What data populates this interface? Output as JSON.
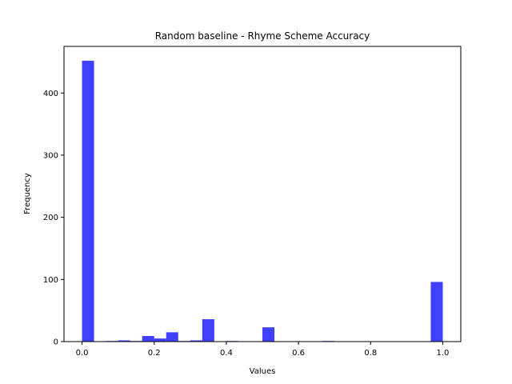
{
  "chart_data": {
    "type": "bar",
    "title": "Random baseline - Rhyme Scheme Accuracy",
    "xlabel": "Values",
    "ylabel": "Frequency",
    "xlim": [
      -0.05,
      1.05
    ],
    "ylim": [
      0,
      475
    ],
    "bar_color": "#0000ff",
    "bar_opacity": 0.75,
    "bin_width": 0.0333,
    "x_ticks": [
      0.0,
      0.2,
      0.4,
      0.6,
      0.8,
      1.0
    ],
    "x_tick_labels": [
      "0.0",
      "0.2",
      "0.4",
      "0.6",
      "0.8",
      "1.0"
    ],
    "y_ticks": [
      0,
      100,
      200,
      300,
      400
    ],
    "y_tick_labels": [
      "0",
      "100",
      "200",
      "300",
      "400"
    ],
    "bins": [
      {
        "x": 0.0,
        "value": 452
      },
      {
        "x": 0.0333,
        "value": 0
      },
      {
        "x": 0.0667,
        "value": 1
      },
      {
        "x": 0.1,
        "value": 2
      },
      {
        "x": 0.1333,
        "value": 1
      },
      {
        "x": 0.1667,
        "value": 9
      },
      {
        "x": 0.2,
        "value": 5
      },
      {
        "x": 0.2333,
        "value": 15
      },
      {
        "x": 0.2667,
        "value": 1
      },
      {
        "x": 0.3,
        "value": 2
      },
      {
        "x": 0.3333,
        "value": 36
      },
      {
        "x": 0.3667,
        "value": 0
      },
      {
        "x": 0.4,
        "value": 1
      },
      {
        "x": 0.4333,
        "value": 0
      },
      {
        "x": 0.4667,
        "value": 0
      },
      {
        "x": 0.5,
        "value": 23
      },
      {
        "x": 0.5333,
        "value": 0
      },
      {
        "x": 0.5667,
        "value": 0
      },
      {
        "x": 0.6,
        "value": 0
      },
      {
        "x": 0.6333,
        "value": 0
      },
      {
        "x": 0.6667,
        "value": 1
      },
      {
        "x": 0.7,
        "value": 0
      },
      {
        "x": 0.7333,
        "value": 0
      },
      {
        "x": 0.7667,
        "value": 0
      },
      {
        "x": 0.8,
        "value": 0
      },
      {
        "x": 0.8333,
        "value": 0
      },
      {
        "x": 0.8667,
        "value": 0
      },
      {
        "x": 0.9,
        "value": 0
      },
      {
        "x": 0.9333,
        "value": 0
      },
      {
        "x": 0.9667,
        "value": 96
      }
    ]
  }
}
